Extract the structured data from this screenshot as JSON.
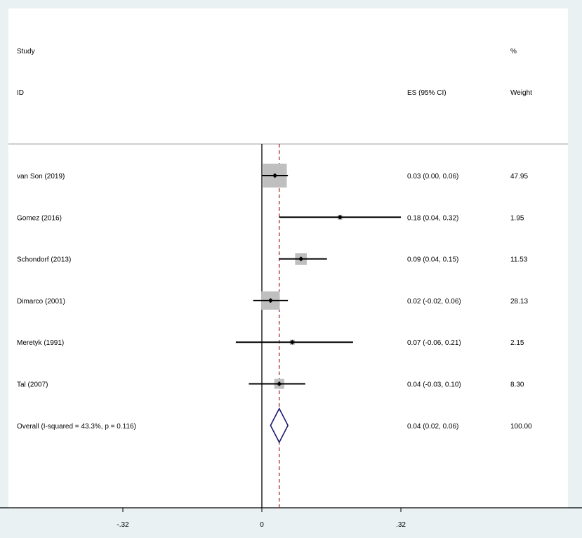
{
  "chart_data": {
    "type": "forest",
    "headers": {
      "study_line1": "Study",
      "study_line2": "ID",
      "es": "ES (95% CI)",
      "weight_line1": "%",
      "weight_line2": "Weight"
    },
    "studies": [
      {
        "label": "van Son (2019)",
        "es": 0.03,
        "lo": 0.0,
        "hi": 0.06,
        "es_text": "0.03 (0.00, 0.06)",
        "weight": 47.95,
        "weight_text": "47.95"
      },
      {
        "label": "Gomez (2016)",
        "es": 0.18,
        "lo": 0.04,
        "hi": 0.32,
        "es_text": "0.18 (0.04, 0.32)",
        "weight": 1.95,
        "weight_text": "1.95"
      },
      {
        "label": "Schondorf (2013)",
        "es": 0.09,
        "lo": 0.04,
        "hi": 0.15,
        "es_text": "0.09 (0.04, 0.15)",
        "weight": 11.53,
        "weight_text": "11.53"
      },
      {
        "label": "Dimarco (2001)",
        "es": 0.02,
        "lo": -0.02,
        "hi": 0.06,
        "es_text": "0.02 (-0.02, 0.06)",
        "weight": 28.13,
        "weight_text": "28.13"
      },
      {
        "label": "Meretyk (1991)",
        "es": 0.07,
        "lo": -0.06,
        "hi": 0.21,
        "es_text": "0.07 (-0.06, 0.21)",
        "weight": 2.15,
        "weight_text": "2.15"
      },
      {
        "label": "Tal (2007)",
        "es": 0.04,
        "lo": -0.03,
        "hi": 0.1,
        "es_text": "0.04 (-0.03, 0.10)",
        "weight": 8.3,
        "weight_text": "8.30"
      }
    ],
    "overall": {
      "label": "Overall  (I-squared = 43.3%, p = 0.116)",
      "es": 0.04,
      "lo": 0.02,
      "hi": 0.06,
      "es_text": "0.04 (0.02, 0.06)",
      "weight_text": "100.00"
    },
    "x_ticks": [
      {
        "value": -0.32,
        "label": "-.32"
      },
      {
        "value": 0,
        "label": "0"
      },
      {
        "value": 0.32,
        "label": ".32"
      }
    ],
    "xlim": [
      -0.58,
      0.7
    ],
    "null_line": 0,
    "colors": {
      "background": "#e9f1f3",
      "panel": "#ffffff",
      "box": "#bfbfbf",
      "ci_line": "#000000",
      "overall_diamond": "#1a1a6e",
      "overall_line": "#a52a2a"
    }
  }
}
